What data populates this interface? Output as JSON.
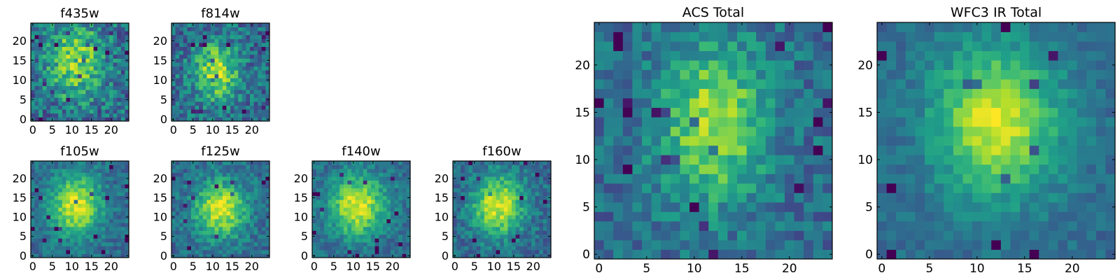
{
  "figure": {
    "colormap": "viridis",
    "background": "#ffffff"
  },
  "chart_data": [
    {
      "type": "heatmap",
      "title": "f435w",
      "grid": [
        25,
        25
      ],
      "xlim": [
        -0.5,
        24.5
      ],
      "ylim": [
        -0.5,
        24.5
      ],
      "xticks": [
        0,
        5,
        10,
        15,
        20
      ],
      "yticks": [
        0,
        5,
        10,
        15,
        20
      ],
      "xtick_labels": [
        "0",
        "5",
        "10",
        "15",
        "20"
      ],
      "ytick_labels": [
        "0",
        "5",
        "10",
        "15",
        "20"
      ],
      "center": [
        11,
        15
      ],
      "sigma": [
        5,
        7
      ],
      "peak": 0.8,
      "noise": 0.45,
      "grid_lines": false
    },
    {
      "type": "heatmap",
      "title": "f814w",
      "grid": [
        25,
        25
      ],
      "xlim": [
        -0.5,
        24.5
      ],
      "ylim": [
        -0.5,
        24.5
      ],
      "xticks": [
        0,
        5,
        10,
        15,
        20
      ],
      "yticks": [
        0,
        5,
        10,
        15,
        20
      ],
      "xtick_labels": [
        "0",
        "5",
        "10",
        "15",
        "20"
      ],
      "ytick_labels": [
        "0",
        "5",
        "10",
        "15",
        "20"
      ],
      "center": [
        11,
        12
      ],
      "sigma": [
        4,
        5
      ],
      "peak": 0.9,
      "noise": 0.4,
      "grid_lines": false
    },
    {
      "type": "heatmap",
      "title": "f105w",
      "grid": [
        25,
        25
      ],
      "xlim": [
        -0.5,
        24.5
      ],
      "ylim": [
        -0.5,
        24.5
      ],
      "xticks": [
        0,
        5,
        10,
        15,
        20
      ],
      "yticks": [
        0,
        5,
        10,
        15,
        20
      ],
      "xtick_labels": [
        "0",
        "5",
        "10",
        "15",
        "20"
      ],
      "ytick_labels": [
        "0",
        "5",
        "10",
        "15",
        "20"
      ],
      "center": [
        11,
        13
      ],
      "sigma": [
        4.5,
        5.5
      ],
      "peak": 1.0,
      "noise": 0.25,
      "grid_lines": false
    },
    {
      "type": "heatmap",
      "title": "f125w",
      "grid": [
        25,
        25
      ],
      "xlim": [
        -0.5,
        24.5
      ],
      "ylim": [
        -0.5,
        24.5
      ],
      "xticks": [
        0,
        5,
        10,
        15,
        20
      ],
      "yticks": [
        0,
        5,
        10,
        15,
        20
      ],
      "xtick_labels": [
        "0",
        "5",
        "10",
        "15",
        "20"
      ],
      "ytick_labels": [
        "0",
        "5",
        "10",
        "15",
        "20"
      ],
      "center": [
        12,
        12
      ],
      "sigma": [
        4.5,
        5
      ],
      "peak": 1.0,
      "noise": 0.28,
      "grid_lines": false
    },
    {
      "type": "heatmap",
      "title": "f140w",
      "grid": [
        25,
        25
      ],
      "xlim": [
        -0.5,
        24.5
      ],
      "ylim": [
        -0.5,
        24.5
      ],
      "xticks": [
        0,
        5,
        10,
        15,
        20
      ],
      "yticks": [
        0,
        5,
        10,
        15,
        20
      ],
      "xtick_labels": [
        "0",
        "5",
        "10",
        "15",
        "20"
      ],
      "ytick_labels": [
        "0",
        "5",
        "10",
        "15",
        "20"
      ],
      "center": [
        11,
        13
      ],
      "sigma": [
        5,
        5.5
      ],
      "peak": 1.0,
      "noise": 0.25,
      "grid_lines": false
    },
    {
      "type": "heatmap",
      "title": "f160w",
      "grid": [
        25,
        25
      ],
      "xlim": [
        -0.5,
        24.5
      ],
      "ylim": [
        -0.5,
        24.5
      ],
      "xticks": [
        0,
        5,
        10,
        15,
        20
      ],
      "yticks": [
        0,
        5,
        10,
        15,
        20
      ],
      "xtick_labels": [
        "0",
        "5",
        "10",
        "15",
        "20"
      ],
      "ytick_labels": [
        "0",
        "5",
        "10",
        "15",
        "20"
      ],
      "center": [
        11,
        13
      ],
      "sigma": [
        4.5,
        5.5
      ],
      "peak": 1.0,
      "noise": 0.28,
      "grid_lines": false
    },
    {
      "type": "heatmap",
      "title": "ACS Total",
      "grid": [
        25,
        25
      ],
      "xlim": [
        -0.5,
        24.5
      ],
      "ylim": [
        -0.5,
        24.5
      ],
      "xticks": [
        0,
        5,
        10,
        15,
        20
      ],
      "yticks": [
        0,
        5,
        10,
        15,
        20
      ],
      "xtick_labels": [
        "0",
        "5",
        "10",
        "15",
        "20"
      ],
      "ytick_labels": [
        "0",
        "5",
        "10",
        "15",
        "20"
      ],
      "center": [
        12,
        14
      ],
      "sigma": [
        4,
        6
      ],
      "peak": 0.85,
      "noise": 0.3,
      "grid_lines": false
    },
    {
      "type": "heatmap",
      "title": "WFC3 IR Total",
      "grid": [
        25,
        25
      ],
      "xlim": [
        -0.5,
        24.5
      ],
      "ylim": [
        -0.5,
        24.5
      ],
      "xticks": [
        0,
        5,
        10,
        15,
        20
      ],
      "yticks": [
        0,
        5,
        10,
        15,
        20
      ],
      "xtick_labels": [
        "0",
        "5",
        "10",
        "15",
        "20"
      ],
      "ytick_labels": [
        "0",
        "5",
        "10",
        "15",
        "20"
      ],
      "center": [
        12,
        14
      ],
      "sigma": [
        4.5,
        5.5
      ],
      "peak": 1.0,
      "noise": 0.18,
      "grid_lines": false
    }
  ]
}
